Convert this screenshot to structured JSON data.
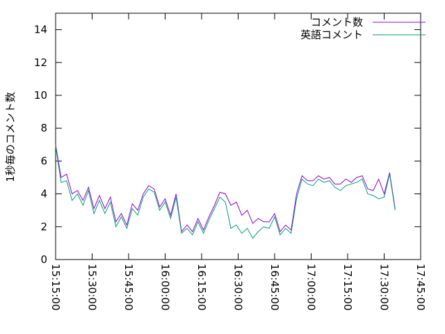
{
  "chart_data": {
    "type": "line",
    "ylabel": "1秒毎のコメント数",
    "x": [
      "15:15:00",
      "15:17:15",
      "15:19:30",
      "15:21:45",
      "15:24:00",
      "15:26:15",
      "15:28:30",
      "15:30:45",
      "15:33:00",
      "15:35:15",
      "15:37:30",
      "15:39:45",
      "15:42:00",
      "15:44:15",
      "15:46:30",
      "15:48:45",
      "15:51:00",
      "15:53:15",
      "15:55:30",
      "15:57:45",
      "16:00:00",
      "16:02:15",
      "16:04:30",
      "16:06:45",
      "16:09:00",
      "16:11:15",
      "16:13:30",
      "16:15:45",
      "16:18:00",
      "16:20:15",
      "16:22:30",
      "16:24:45",
      "16:27:00",
      "16:29:15",
      "16:31:30",
      "16:33:45",
      "16:36:00",
      "16:38:15",
      "16:40:30",
      "16:42:45",
      "16:45:00",
      "16:47:15",
      "16:49:30",
      "16:51:45",
      "16:54:00",
      "16:56:15",
      "16:58:30",
      "17:00:45",
      "17:03:00",
      "17:05:15",
      "17:07:30",
      "17:09:45",
      "17:12:00",
      "17:14:15",
      "17:16:30",
      "17:18:45",
      "17:21:00",
      "17:23:15",
      "17:25:30",
      "17:27:45",
      "17:30:00",
      "17:32:15",
      "17:34:30"
    ],
    "series": [
      {
        "name": "コメント数",
        "color": "#9400d3",
        "values": [
          7.0,
          5.0,
          5.2,
          4.0,
          4.2,
          3.6,
          4.4,
          3.1,
          3.9,
          3.1,
          3.8,
          2.3,
          2.8,
          2.1,
          3.4,
          3.0,
          4.0,
          4.5,
          4.3,
          3.2,
          3.7,
          2.7,
          4.0,
          1.7,
          2.1,
          1.7,
          2.5,
          1.8,
          2.6,
          3.3,
          4.1,
          4.0,
          3.3,
          3.5,
          2.7,
          3.0,
          2.2,
          2.5,
          2.3,
          2.3,
          2.8,
          1.7,
          2.1,
          1.8,
          4.0,
          5.1,
          4.8,
          4.8,
          5.1,
          4.9,
          5.0,
          4.6,
          4.6,
          4.9,
          4.7,
          5.0,
          5.1,
          4.3,
          4.2,
          4.9,
          4.0,
          5.3,
          3.1
        ]
      },
      {
        "name": "英語コメント",
        "color": "#009e73",
        "values": [
          6.9,
          4.7,
          4.8,
          3.6,
          4.0,
          3.3,
          4.2,
          2.8,
          3.6,
          2.8,
          3.5,
          2.0,
          2.6,
          1.9,
          3.1,
          2.7,
          3.8,
          4.3,
          4.1,
          3.0,
          3.5,
          2.5,
          3.8,
          1.6,
          1.9,
          1.5,
          2.3,
          1.6,
          2.4,
          3.1,
          3.8,
          3.5,
          1.9,
          2.1,
          1.6,
          1.9,
          1.3,
          1.7,
          2.0,
          1.9,
          2.6,
          1.5,
          1.9,
          1.6,
          3.7,
          4.9,
          4.6,
          4.5,
          4.9,
          4.7,
          4.8,
          4.4,
          4.2,
          4.5,
          4.6,
          4.7,
          4.9,
          4.0,
          3.9,
          3.7,
          3.8,
          5.2,
          3.0
        ]
      }
    ],
    "xlim": [
      "15:15:00",
      "17:45:00"
    ],
    "xticks": [
      "15:15:00",
      "15:30:00",
      "15:45:00",
      "16:00:00",
      "16:15:00",
      "16:30:00",
      "16:45:00",
      "17:00:00",
      "17:15:00",
      "17:30:00",
      "17:45:00"
    ],
    "ylim": [
      0,
      15
    ],
    "yticks": [
      0,
      2,
      4,
      6,
      8,
      10,
      12,
      14
    ],
    "legend": "top-right"
  }
}
